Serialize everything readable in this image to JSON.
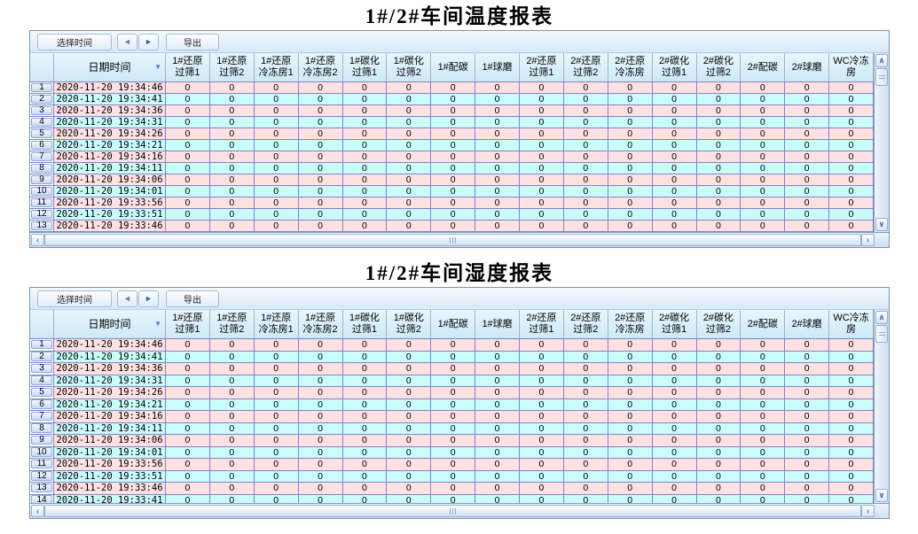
{
  "icons": {
    "prev": "◄",
    "next": "►",
    "sort": "▼",
    "scroll_up": "∧",
    "scroll_down": "∨",
    "scroll_left": "‹",
    "scroll_right": "›"
  },
  "toolbar": {
    "select_time_label": "选择时间",
    "export_label": "导出"
  },
  "columns": {
    "datetime_label": "日期时间",
    "data": [
      {
        "label": "1#还原过筛1",
        "lines": [
          "1#还原",
          "过筛1"
        ]
      },
      {
        "label": "1#还原过筛2",
        "lines": [
          "1#还原",
          "过筛2"
        ]
      },
      {
        "label": "1#还原冷冻房1",
        "lines": [
          "1#还原",
          "冷冻房1"
        ]
      },
      {
        "label": "1#还原冷冻房2",
        "lines": [
          "1#还原",
          "冷冻房2"
        ]
      },
      {
        "label": "1#碳化过筛1",
        "lines": [
          "1#碳化",
          "过筛1"
        ]
      },
      {
        "label": "1#碳化过筛2",
        "lines": [
          "1#碳化",
          "过筛2"
        ]
      },
      {
        "label": "1#配碳",
        "lines": [
          "1#配碳"
        ]
      },
      {
        "label": "1#球磨",
        "lines": [
          "1#球磨"
        ]
      },
      {
        "label": "2#还原过筛1",
        "lines": [
          "2#还原",
          "过筛1"
        ]
      },
      {
        "label": "2#还原过筛2",
        "lines": [
          "2#还原",
          "过筛2"
        ]
      },
      {
        "label": "2#还原冷冻房",
        "lines": [
          "2#还原",
          "冷冻房"
        ]
      },
      {
        "label": "2#碳化过筛1",
        "lines": [
          "2#碳化",
          "过筛1"
        ]
      },
      {
        "label": "2#碳化过筛2",
        "lines": [
          "2#碳化",
          "过筛2"
        ]
      },
      {
        "label": "2#配碳",
        "lines": [
          "2#配碳"
        ]
      },
      {
        "label": "2#球磨",
        "lines": [
          "2#球磨"
        ]
      },
      {
        "label": "WC冷冻房",
        "lines": [
          "WC冷冻",
          "房"
        ]
      }
    ]
  },
  "colors": {
    "row_odd": "#FFE1E1",
    "row_even": "#CAFCFC",
    "grid_border": "#8282CC",
    "header_bg": "#CDE9F7",
    "frame_border": "#7E93AB"
  },
  "reports": [
    {
      "title": "1#/2#车间温度报表",
      "rows": [
        {
          "index": 1,
          "datetime": "2020-11-20 19:34:46",
          "values": [
            0,
            0,
            0,
            0,
            0,
            0,
            0,
            0,
            0,
            0,
            0,
            0,
            0,
            0,
            0,
            0
          ]
        },
        {
          "index": 2,
          "datetime": "2020-11-20 19:34:41",
          "values": [
            0,
            0,
            0,
            0,
            0,
            0,
            0,
            0,
            0,
            0,
            0,
            0,
            0,
            0,
            0,
            0
          ]
        },
        {
          "index": 3,
          "datetime": "2020-11-20 19:34:36",
          "values": [
            0,
            0,
            0,
            0,
            0,
            0,
            0,
            0,
            0,
            0,
            0,
            0,
            0,
            0,
            0,
            0
          ]
        },
        {
          "index": 4,
          "datetime": "2020-11-20 19:34:31",
          "values": [
            0,
            0,
            0,
            0,
            0,
            0,
            0,
            0,
            0,
            0,
            0,
            0,
            0,
            0,
            0,
            0
          ]
        },
        {
          "index": 5,
          "datetime": "2020-11-20 19:34:26",
          "values": [
            0,
            0,
            0,
            0,
            0,
            0,
            0,
            0,
            0,
            0,
            0,
            0,
            0,
            0,
            0,
            0
          ]
        },
        {
          "index": 6,
          "datetime": "2020-11-20 19:34:21",
          "values": [
            0,
            0,
            0,
            0,
            0,
            0,
            0,
            0,
            0,
            0,
            0,
            0,
            0,
            0,
            0,
            0
          ]
        },
        {
          "index": 7,
          "datetime": "2020-11-20 19:34:16",
          "values": [
            0,
            0,
            0,
            0,
            0,
            0,
            0,
            0,
            0,
            0,
            0,
            0,
            0,
            0,
            0,
            0
          ]
        },
        {
          "index": 8,
          "datetime": "2020-11-20 19:34:11",
          "values": [
            0,
            0,
            0,
            0,
            0,
            0,
            0,
            0,
            0,
            0,
            0,
            0,
            0,
            0,
            0,
            0
          ]
        },
        {
          "index": 9,
          "datetime": "2020-11-20 19:34:06",
          "values": [
            0,
            0,
            0,
            0,
            0,
            0,
            0,
            0,
            0,
            0,
            0,
            0,
            0,
            0,
            0,
            0
          ]
        },
        {
          "index": 10,
          "datetime": "2020-11-20 19:34:01",
          "values": [
            0,
            0,
            0,
            0,
            0,
            0,
            0,
            0,
            0,
            0,
            0,
            0,
            0,
            0,
            0,
            0
          ]
        },
        {
          "index": 11,
          "datetime": "2020-11-20 19:33:56",
          "values": [
            0,
            0,
            0,
            0,
            0,
            0,
            0,
            0,
            0,
            0,
            0,
            0,
            0,
            0,
            0,
            0
          ]
        },
        {
          "index": 12,
          "datetime": "2020-11-20 19:33:51",
          "values": [
            0,
            0,
            0,
            0,
            0,
            0,
            0,
            0,
            0,
            0,
            0,
            0,
            0,
            0,
            0,
            0
          ]
        },
        {
          "index": 13,
          "datetime": "2020-11-20 19:33:46",
          "values": [
            0,
            0,
            0,
            0,
            0,
            0,
            0,
            0,
            0,
            0,
            0,
            0,
            0,
            0,
            0,
            0
          ]
        }
      ]
    },
    {
      "title": "1#/2#车间湿度报表",
      "rows": [
        {
          "index": 1,
          "datetime": "2020-11-20 19:34:46",
          "values": [
            0,
            0,
            0,
            0,
            0,
            0,
            0,
            0,
            0,
            0,
            0,
            0,
            0,
            0,
            0,
            0
          ]
        },
        {
          "index": 2,
          "datetime": "2020-11-20 19:34:41",
          "values": [
            0,
            0,
            0,
            0,
            0,
            0,
            0,
            0,
            0,
            0,
            0,
            0,
            0,
            0,
            0,
            0
          ]
        },
        {
          "index": 3,
          "datetime": "2020-11-20 19:34:36",
          "values": [
            0,
            0,
            0,
            0,
            0,
            0,
            0,
            0,
            0,
            0,
            0,
            0,
            0,
            0,
            0,
            0
          ]
        },
        {
          "index": 4,
          "datetime": "2020-11-20 19:34:31",
          "values": [
            0,
            0,
            0,
            0,
            0,
            0,
            0,
            0,
            0,
            0,
            0,
            0,
            0,
            0,
            0,
            0
          ]
        },
        {
          "index": 5,
          "datetime": "2020-11-20 19:34:26",
          "values": [
            0,
            0,
            0,
            0,
            0,
            0,
            0,
            0,
            0,
            0,
            0,
            0,
            0,
            0,
            0,
            0
          ]
        },
        {
          "index": 6,
          "datetime": "2020-11-20 19:34:21",
          "values": [
            0,
            0,
            0,
            0,
            0,
            0,
            0,
            0,
            0,
            0,
            0,
            0,
            0,
            0,
            0,
            0
          ]
        },
        {
          "index": 7,
          "datetime": "2020-11-20 19:34:16",
          "values": [
            0,
            0,
            0,
            0,
            0,
            0,
            0,
            0,
            0,
            0,
            0,
            0,
            0,
            0,
            0,
            0
          ]
        },
        {
          "index": 8,
          "datetime": "2020-11-20 19:34:11",
          "values": [
            0,
            0,
            0,
            0,
            0,
            0,
            0,
            0,
            0,
            0,
            0,
            0,
            0,
            0,
            0,
            0
          ]
        },
        {
          "index": 9,
          "datetime": "2020-11-20 19:34:06",
          "values": [
            0,
            0,
            0,
            0,
            0,
            0,
            0,
            0,
            0,
            0,
            0,
            0,
            0,
            0,
            0,
            0
          ]
        },
        {
          "index": 10,
          "datetime": "2020-11-20 19:34:01",
          "values": [
            0,
            0,
            0,
            0,
            0,
            0,
            0,
            0,
            0,
            0,
            0,
            0,
            0,
            0,
            0,
            0
          ]
        },
        {
          "index": 11,
          "datetime": "2020-11-20 19:33:56",
          "values": [
            0,
            0,
            0,
            0,
            0,
            0,
            0,
            0,
            0,
            0,
            0,
            0,
            0,
            0,
            0,
            0
          ]
        },
        {
          "index": 12,
          "datetime": "2020-11-20 19:33:51",
          "values": [
            0,
            0,
            0,
            0,
            0,
            0,
            0,
            0,
            0,
            0,
            0,
            0,
            0,
            0,
            0,
            0
          ]
        },
        {
          "index": 13,
          "datetime": "2020-11-20 19:33:46",
          "values": [
            0,
            0,
            0,
            0,
            0,
            0,
            0,
            0,
            0,
            0,
            0,
            0,
            0,
            0,
            0,
            0
          ]
        },
        {
          "index": 14,
          "datetime": "2020-11-20 19:33:41",
          "values": [
            0,
            0,
            0,
            0,
            0,
            0,
            0,
            0,
            0,
            0,
            0,
            0,
            0,
            0,
            0,
            0
          ]
        }
      ]
    }
  ]
}
